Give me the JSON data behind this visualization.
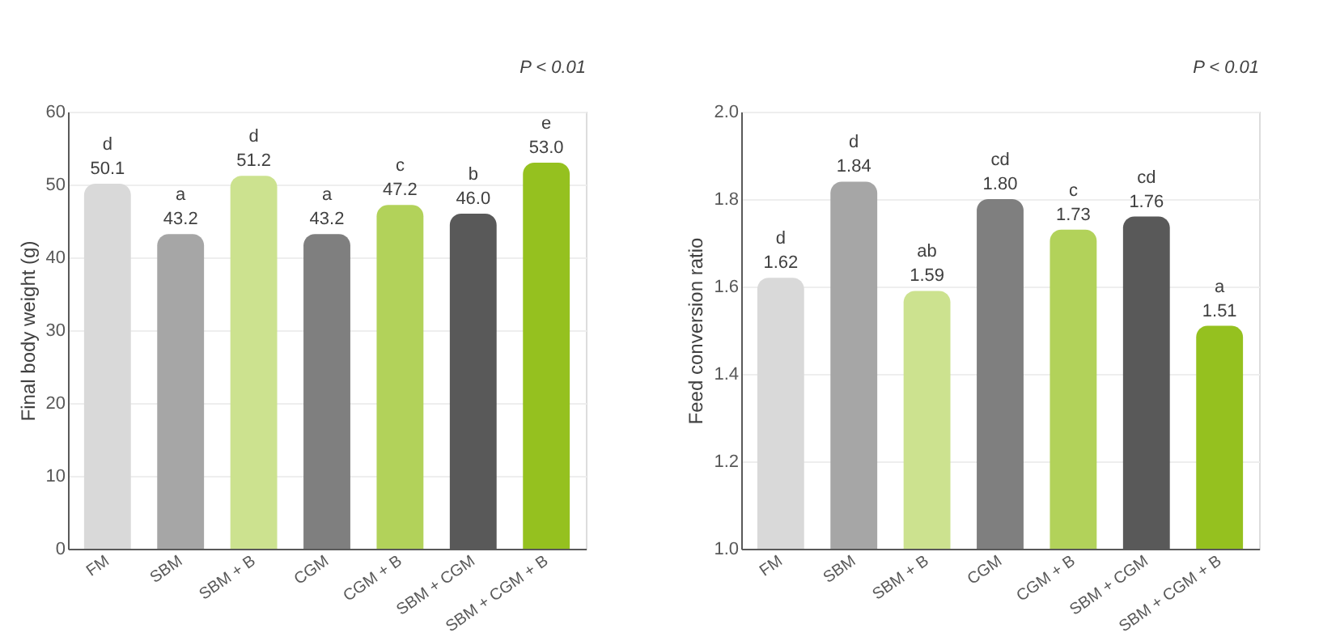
{
  "chart_data": [
    {
      "type": "bar",
      "ylabel": "Final body weight (g)",
      "categories": [
        "FM",
        "SBM",
        "SBM + B",
        "CGM",
        "CGM + B",
        "SBM + CGM",
        "SBM + CGM + B"
      ],
      "values": [
        50.1,
        43.2,
        51.2,
        43.2,
        47.2,
        46.0,
        53.0
      ],
      "colors": [
        "#d9d9d9",
        "#a6a6a6",
        "#cce28f",
        "#7f7f7f",
        "#b2d25a",
        "#595959",
        "#95c11f"
      ],
      "value_labels": [
        "50.1",
        "43.2",
        "51.2",
        "43.2",
        "47.2",
        "46.0",
        "53.0"
      ],
      "ylim": [
        0,
        60
      ],
      "yticks": [
        0,
        10,
        20,
        30,
        40,
        50,
        60
      ],
      "grid": "y",
      "annotations": [
        "P < 0.01",
        {
          "text": "d",
          "x": "FM",
          "y": 50.1
        },
        {
          "text": "a",
          "x": "SBM",
          "y": 43.2
        },
        {
          "text": "d",
          "x": "SBM + B",
          "y": 51.2
        },
        {
          "text": "a",
          "x": "CGM",
          "y": 43.2
        },
        {
          "text": "c",
          "x": "CGM + B",
          "y": 47.2
        },
        {
          "text": "b",
          "x": "SBM + CGM",
          "y": 46.0
        },
        {
          "text": "e",
          "x": "SBM + CGM + B",
          "y": 53.0
        }
      ]
    },
    {
      "type": "bar",
      "ylabel": "Feed conversion ratio",
      "categories": [
        "FM",
        "SBM",
        "SBM + B",
        "CGM",
        "CGM + B",
        "SBM + CGM",
        "SBM + CGM + B"
      ],
      "values": [
        1.62,
        1.84,
        1.59,
        1.8,
        1.73,
        1.76,
        1.51
      ],
      "colors": [
        "#d9d9d9",
        "#a6a6a6",
        "#cce28f",
        "#7f7f7f",
        "#b2d25a",
        "#595959",
        "#95c11f"
      ],
      "value_labels": [
        "1.62",
        "1.84",
        "1.59",
        "1.80",
        "1.73",
        "1.76",
        "1.51"
      ],
      "ylim": [
        1.0,
        2.0
      ],
      "yticks": [
        {
          "value": 1.0,
          "label": "1.0"
        },
        1.2,
        1.4,
        1.6,
        1.8,
        {
          "value": 2.0,
          "label": "2.0"
        }
      ],
      "grid": "y",
      "annotations": [
        "P < 0.01",
        {
          "text": "d",
          "x": "FM",
          "y": 1.62
        },
        {
          "text": "d",
          "x": "SBM",
          "y": 1.84
        },
        {
          "text": "ab",
          "x": "SBM + B",
          "y": 1.59
        },
        {
          "text": "cd",
          "x": "CGM",
          "y": 1.8
        },
        {
          "text": "c",
          "x": "CGM + B",
          "y": 1.73
        },
        {
          "text": "cd",
          "x": "SBM + CGM",
          "y": 1.76
        },
        {
          "text": "a",
          "x": "SBM + CGM + B",
          "y": 1.51
        }
      ]
    }
  ]
}
